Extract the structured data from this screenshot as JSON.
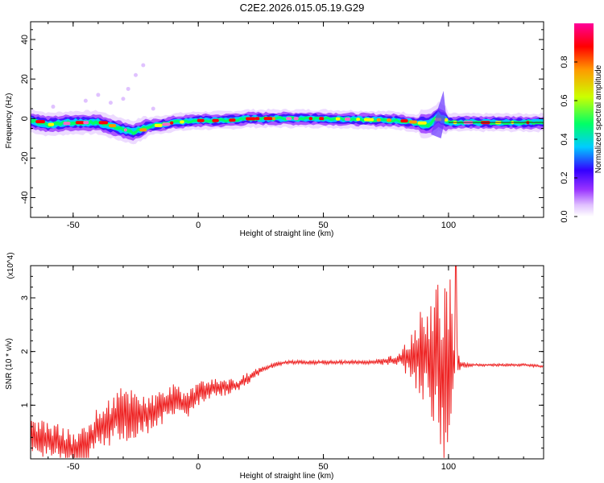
{
  "title": "C2E2.2026.015.05.19.G29",
  "chart_data": [
    {
      "type": "heatmap",
      "xlabel": "Height of straight line (km)",
      "ylabel": "Frequency (Hz)",
      "xlim": [
        -67,
        138
      ],
      "ylim": [
        -50,
        49
      ],
      "xticks": [
        -50,
        0,
        50,
        100
      ],
      "yticks": [
        -40,
        -20,
        0,
        20,
        40
      ],
      "colorbar": {
        "label": "Normalized spectral amplitude",
        "range": [
          0,
          1
        ],
        "ticks": [
          "0.0",
          "0.2",
          "0.4",
          "0.6",
          "0.8"
        ],
        "colors": [
          "#ffffff",
          "#9933ff",
          "#0000ff",
          "#00ccff",
          "#00ff00",
          "#ffff00",
          "#ff9900",
          "#ff0000",
          "#ff00aa"
        ]
      },
      "ridge_frequency": [
        {
          "x": -67,
          "y": -1
        },
        {
          "x": -60,
          "y": -3
        },
        {
          "x": -50,
          "y": -2
        },
        {
          "x": -40,
          "y": -2
        },
        {
          "x": -32,
          "y": -5
        },
        {
          "x": -26,
          "y": -7
        },
        {
          "x": -20,
          "y": -4
        },
        {
          "x": -10,
          "y": -2
        },
        {
          "x": 0,
          "y": -1
        },
        {
          "x": 10,
          "y": -1
        },
        {
          "x": 20,
          "y": 0
        },
        {
          "x": 50,
          "y": 0
        },
        {
          "x": 80,
          "y": -1
        },
        {
          "x": 92,
          "y": -3
        },
        {
          "x": 96,
          "y": 1
        },
        {
          "x": 100,
          "y": -2
        },
        {
          "x": 138,
          "y": -2
        }
      ]
    },
    {
      "type": "line",
      "xlabel": "Height of straight line (km)",
      "ylabel": "SNR (10 * v/v)",
      "y_multiplier": "(x10^4)",
      "xlim": [
        -67,
        138
      ],
      "ylim": [
        0,
        3.6
      ],
      "xticks": [
        -50,
        0,
        50,
        100
      ],
      "yticks": [
        1,
        2,
        3
      ],
      "color": "#ee2222",
      "x": [
        -67,
        -60,
        -55,
        -50,
        -45,
        -40,
        -35,
        -30,
        -25,
        -20,
        -15,
        -10,
        -5,
        0,
        5,
        10,
        15,
        20,
        25,
        30,
        35,
        40,
        50,
        60,
        70,
        80,
        85,
        90,
        95,
        98,
        100,
        102,
        105,
        110,
        120,
        130,
        138
      ],
      "y": [
        0.45,
        0.35,
        0.3,
        0.15,
        0.25,
        0.55,
        0.7,
        0.85,
        0.85,
        0.8,
        0.95,
        1.1,
        1.0,
        1.2,
        1.3,
        1.35,
        1.35,
        1.5,
        1.65,
        1.75,
        1.8,
        1.8,
        1.8,
        1.8,
        1.8,
        1.85,
        1.9,
        1.95,
        1.8,
        1.6,
        1.7,
        1.8,
        1.75,
        1.75,
        1.75,
        1.75,
        1.72
      ],
      "noise_amplitude": [
        0.25,
        0.3,
        0.3,
        0.3,
        0.35,
        0.35,
        0.4,
        0.45,
        0.45,
        0.3,
        0.3,
        0.25,
        0.25,
        0.2,
        0.15,
        0.15,
        0.1,
        0.1,
        0.05,
        0.04,
        0.03,
        0.03,
        0.03,
        0.03,
        0.03,
        0.1,
        0.35,
        0.8,
        1.2,
        1.5,
        1.8,
        0.5,
        0.05,
        0.02,
        0.02,
        0.02,
        0.02
      ]
    }
  ]
}
